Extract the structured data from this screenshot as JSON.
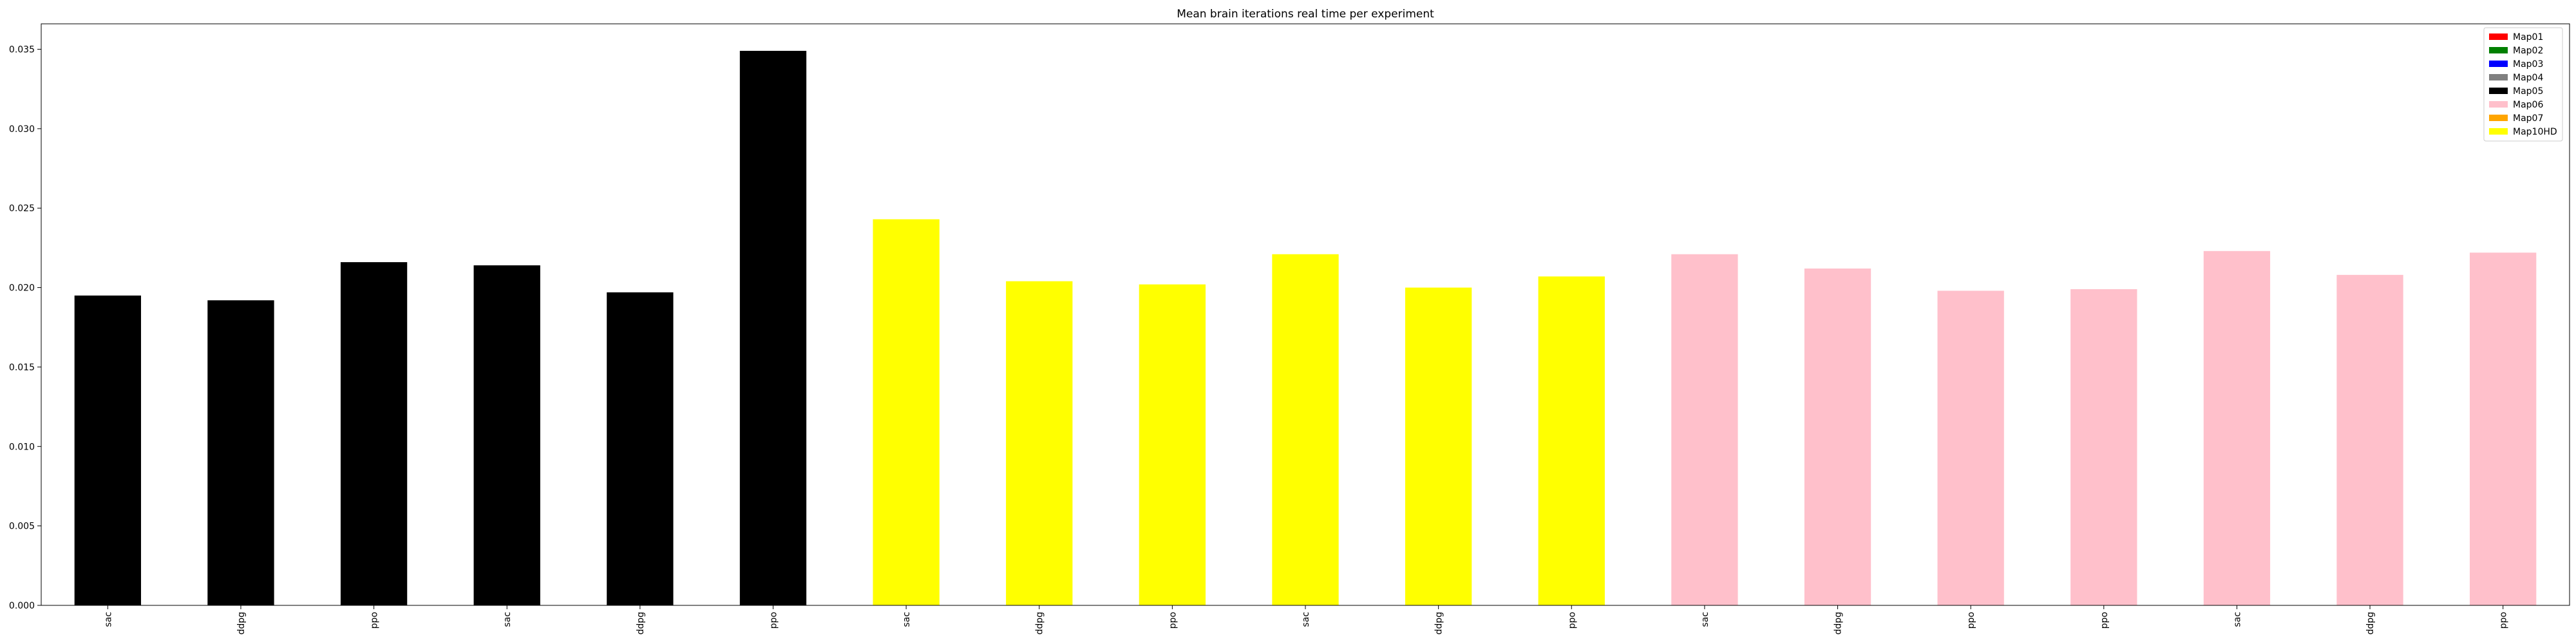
{
  "chart_data": {
    "type": "bar",
    "title": "Mean brain iterations real time per experiment",
    "xlabel": "",
    "ylabel": "",
    "ylim": [
      0,
      0.0366
    ],
    "yticks": [
      "0.000",
      "0.005",
      "0.010",
      "0.015",
      "0.020",
      "0.025",
      "0.030",
      "0.035"
    ],
    "grid": false,
    "legend_position": "top-right",
    "legend": [
      {
        "label": "Map01",
        "color": "#ff0000"
      },
      {
        "label": "Map02",
        "color": "#008000"
      },
      {
        "label": "Map03",
        "color": "#0000ff"
      },
      {
        "label": "Map04",
        "color": "#808080"
      },
      {
        "label": "Map05",
        "color": "#000000"
      },
      {
        "label": "Map06",
        "color": "#ffc0cb"
      },
      {
        "label": "Map07",
        "color": "#ffa500"
      },
      {
        "label": "Map10HD",
        "color": "#ffff00"
      }
    ],
    "categories": [
      "sac",
      "ddpg",
      "ppo",
      "sac",
      "ddpg",
      "ppo",
      "sac",
      "ddpg",
      "ppo",
      "sac",
      "ddpg",
      "ppo",
      "sac",
      "ddpg",
      "ppo",
      "ppo",
      "sac",
      "ddpg",
      "ppo"
    ],
    "values": [
      0.0195,
      0.0192,
      0.0216,
      0.0214,
      0.0197,
      0.0349,
      0.0243,
      0.0204,
      0.0202,
      0.0221,
      0.02,
      0.0207,
      0.0221,
      0.0212,
      0.0198,
      0.0199,
      0.0223,
      0.0208,
      0.0222
    ],
    "bar_colors": [
      "#000000",
      "#000000",
      "#000000",
      "#000000",
      "#000000",
      "#000000",
      "#ffff00",
      "#ffff00",
      "#ffff00",
      "#ffff00",
      "#ffff00",
      "#ffff00",
      "#ffc0cb",
      "#ffc0cb",
      "#ffc0cb",
      "#ffc0cb",
      "#ffc0cb",
      "#ffc0cb",
      "#ffc0cb"
    ]
  }
}
